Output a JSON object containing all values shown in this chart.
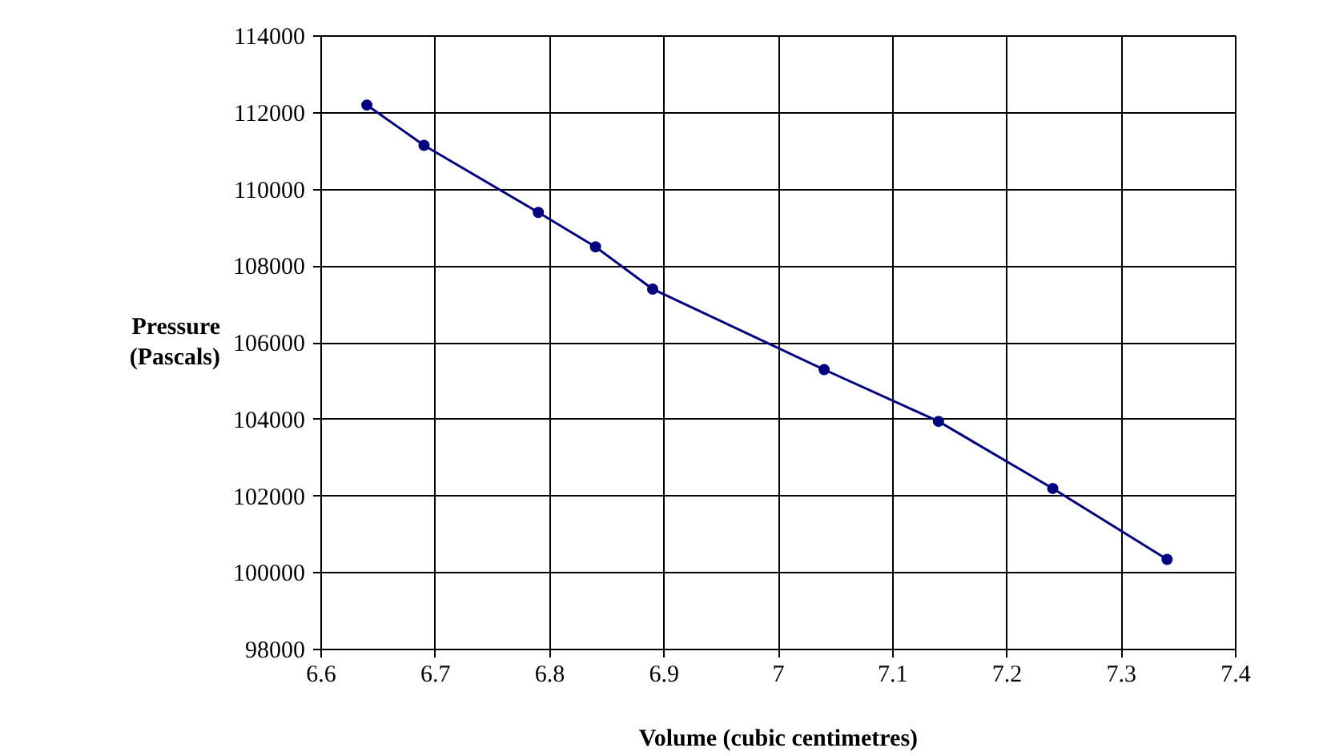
{
  "chart_data": {
    "type": "line",
    "xlabel": "Volume (cubic centimetres)",
    "ylabel": "Pressure (Pascals)",
    "x": [
      6.64,
      6.69,
      6.79,
      6.84,
      6.89,
      7.04,
      7.14,
      7.24,
      7.34
    ],
    "series": [
      {
        "color": "#000080",
        "values": [
          112200,
          111150,
          109400,
          108500,
          107400,
          105300,
          103950,
          102200,
          100350
        ]
      }
    ],
    "xlim": [
      6.6,
      7.4
    ],
    "xticks": [
      6.6,
      6.7,
      6.8,
      6.9,
      7,
      7.1,
      7.2,
      7.3,
      7.4
    ],
    "ylim": [
      98000,
      114000
    ],
    "yticks": [
      98000,
      100000,
      102000,
      104000,
      106000,
      108000,
      110000,
      112000,
      114000
    ],
    "grid": true,
    "marker": "circle",
    "line_style": "solid"
  }
}
